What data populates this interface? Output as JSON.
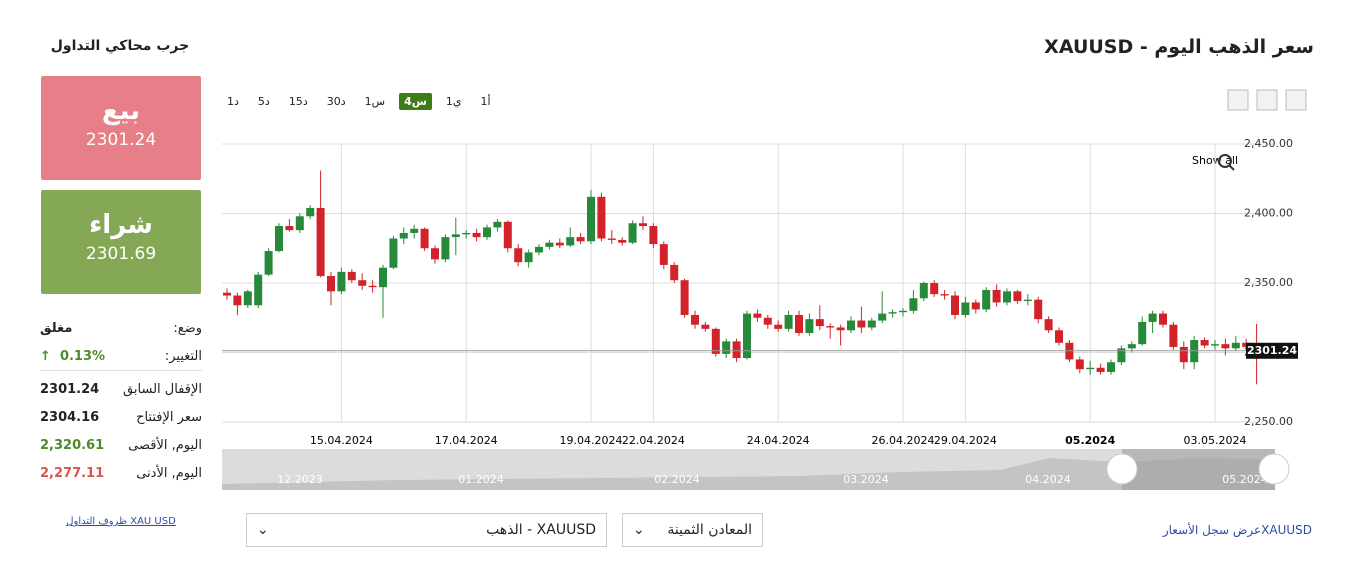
{
  "header": {
    "title": "سعر الذهب اليوم - XAUUSD",
    "simulator": "جرب محاكي التداول"
  },
  "trade": {
    "sell_label": "بيع",
    "sell_price": 2301.24,
    "buy_label": "شراء",
    "buy_price": 2301.69
  },
  "stats": [
    {
      "label": "وضع:",
      "value": "مغلق"
    },
    {
      "label": "التغيير:",
      "value": "0.13%"
    },
    {
      "label": "الإقفال السابق",
      "value": "2301.24"
    },
    {
      "label": "سعر الإفتتاح",
      "value": "2304.16"
    },
    {
      "label": "اليوم, الأقصى",
      "value": "2,320.61"
    },
    {
      "label": "اليوم, الأدنى",
      "value": "2,277.11"
    }
  ],
  "terms_link": "XAU USD ظروف التداول",
  "periods": [
    "1د",
    "5د",
    "15د",
    "30د",
    "1س",
    "4س",
    "1ي",
    "1أ"
  ],
  "active_period": 5,
  "show_all": "Show all",
  "navigator_labels": [
    "12.2023",
    "01.2024",
    "02.2024",
    "03.2024",
    "04.2024",
    "05.2024"
  ],
  "selects": [
    "XAUUSD - الذهب",
    "المعادن الثمينة"
  ],
  "history_link": "XAUUSDعرض سجل الأسعار",
  "chart_data": {
    "type": "candlestick",
    "categories": [
      null,
      null,
      null,
      null,
      null,
      null,
      null,
      null,
      null,
      null,
      null,
      "15.04.2024",
      null,
      null,
      null,
      null,
      null,
      null,
      null,
      null,
      null,
      null,
      null,
      "17.04.2024",
      null,
      null,
      null,
      null,
      null,
      null,
      null,
      null,
      null,
      null,
      null,
      "19.04.2024",
      null,
      null,
      null,
      null,
      null,
      "22.04.2024",
      null,
      null,
      null,
      null,
      null,
      null,
      null,
      null,
      null,
      null,
      null,
      "24.04.2024",
      null,
      null,
      null,
      null,
      null,
      null,
      null,
      null,
      null,
      null,
      null,
      "26.04.2024",
      null,
      null,
      null,
      null,
      null,
      "29.04.2024",
      null,
      null,
      null,
      null,
      null,
      null,
      null,
      null,
      null,
      null,
      null,
      "05.2024",
      null,
      null,
      null,
      null,
      null,
      null,
      null,
      null,
      null,
      null,
      null,
      "03.05.2024",
      null,
      null,
      null,
      null
    ],
    "open": [
      2343,
      2341,
      2334,
      2334,
      2356,
      2373,
      2391,
      2388,
      2398,
      2404,
      2355,
      2344,
      2358,
      2352,
      2348,
      2347,
      2361,
      2382,
      2386,
      2389,
      2375,
      2367,
      2383,
      2385,
      2386,
      2383,
      2390,
      2394,
      2375,
      2365,
      2372,
      2376,
      2379,
      2377,
      2383,
      2380,
      2412,
      2382,
      2381,
      2379,
      2393,
      2391,
      2378,
      2363,
      2352,
      2327,
      2320,
      2317,
      2299,
      2308,
      2296,
      2328,
      2325,
      2320,
      2317,
      2327,
      2314,
      2324,
      2319,
      2318,
      2316,
      2323,
      2318,
      2323,
      2328,
      2329,
      2330,
      2339,
      2350,
      2342,
      2341,
      2327,
      2336,
      2331,
      2345,
      2336,
      2344,
      2337,
      2338,
      2324,
      2316,
      2307,
      2295,
      2288,
      2289,
      2286,
      2293,
      2303,
      2306,
      2322,
      2328,
      2320,
      2304,
      2293,
      2309,
      2305,
      2306,
      2303,
      2307,
      2304.16
    ],
    "high": [
      2346,
      2343,
      2345,
      2358,
      2375,
      2393,
      2396,
      2400,
      2406,
      2431,
      2358,
      2361,
      2360,
      2357,
      2352,
      2363,
      2384,
      2390,
      2392,
      2390,
      2377,
      2385,
      2397,
      2388,
      2389,
      2392,
      2396,
      2395,
      2378,
      2374,
      2378,
      2381,
      2382,
      2390,
      2386,
      2417,
      2415,
      2388,
      2383,
      2395,
      2398,
      2393,
      2380,
      2365,
      2353,
      2330,
      2322,
      2318,
      2310,
      2310,
      2330,
      2331,
      2327,
      2323,
      2330,
      2330,
      2328,
      2334,
      2321,
      2320,
      2326,
      2333,
      2325,
      2344,
      2331,
      2332,
      2345,
      2351,
      2352,
      2345,
      2344,
      2340,
      2338,
      2347,
      2349,
      2346,
      2345,
      2342,
      2340,
      2326,
      2318,
      2309,
      2297,
      2294,
      2292,
      2295,
      2305,
      2308,
      2326,
      2330,
      2330,
      2322,
      2308,
      2312,
      2311,
      2309,
      2310,
      2312,
      2310,
      2320.61
    ],
    "low": [
      2338,
      2327,
      2332,
      2332,
      2355,
      2372,
      2387,
      2386,
      2396,
      2354,
      2334,
      2342,
      2350,
      2345,
      2343,
      2325,
      2360,
      2378,
      2382,
      2373,
      2364,
      2365,
      2370,
      2382,
      2380,
      2381,
      2387,
      2372,
      2362,
      2361,
      2370,
      2374,
      2375,
      2376,
      2378,
      2378,
      2380,
      2378,
      2377,
      2378,
      2388,
      2375,
      2360,
      2350,
      2325,
      2317,
      2315,
      2297,
      2296,
      2293,
      2295,
      2322,
      2317,
      2315,
      2315,
      2312,
      2312,
      2316,
      2310,
      2305,
      2314,
      2314,
      2316,
      2321,
      2325,
      2326,
      2328,
      2337,
      2340,
      2338,
      2324,
      2325,
      2328,
      2329,
      2333,
      2334,
      2335,
      2334,
      2321,
      2314,
      2305,
      2293,
      2285,
      2284,
      2284,
      2284,
      2291,
      2300,
      2305,
      2314,
      2318,
      2302,
      2288,
      2288,
      2303,
      2302,
      2298,
      2301,
      2301,
      2277.11
    ],
    "close": [
      2341,
      2334,
      2344,
      2356,
      2373,
      2391,
      2388,
      2398,
      2404,
      2355,
      2344,
      2358,
      2352,
      2348,
      2347,
      2361,
      2382,
      2386,
      2389,
      2375,
      2367,
      2383,
      2385,
      2386,
      2383,
      2390,
      2394,
      2375,
      2365,
      2372,
      2376,
      2379,
      2377,
      2383,
      2380,
      2412,
      2382,
      2381,
      2379,
      2393,
      2391,
      2378,
      2363,
      2352,
      2327,
      2320,
      2317,
      2299,
      2308,
      2296,
      2328,
      2325,
      2320,
      2317,
      2327,
      2314,
      2324,
      2319,
      2318,
      2316,
      2323,
      2318,
      2323,
      2328,
      2329,
      2330,
      2339,
      2350,
      2342,
      2341,
      2327,
      2336,
      2331,
      2345,
      2336,
      2344,
      2337,
      2338,
      2324,
      2316,
      2307,
      2295,
      2288,
      2289,
      2286,
      2293,
      2303,
      2306,
      2322,
      2328,
      2320,
      2304,
      2293,
      2309,
      2305,
      2306,
      2303,
      2307,
      2304,
      2301.24
    ],
    "up_color": "#27893a",
    "down_color": "#d3222a",
    "last_price": 2301.24,
    "ylim": [
      2250,
      2450
    ],
    "yticks": [
      {
        "value": 2250,
        "label": "2,250.00"
      },
      {
        "value": 2300,
        "label": "2,300.00"
      },
      {
        "value": 2350,
        "label": "2,350.00"
      },
      {
        "value": 2400,
        "label": "2,400.00"
      },
      {
        "value": 2450,
        "label": "2,450.00"
      }
    ],
    "grid": true
  }
}
